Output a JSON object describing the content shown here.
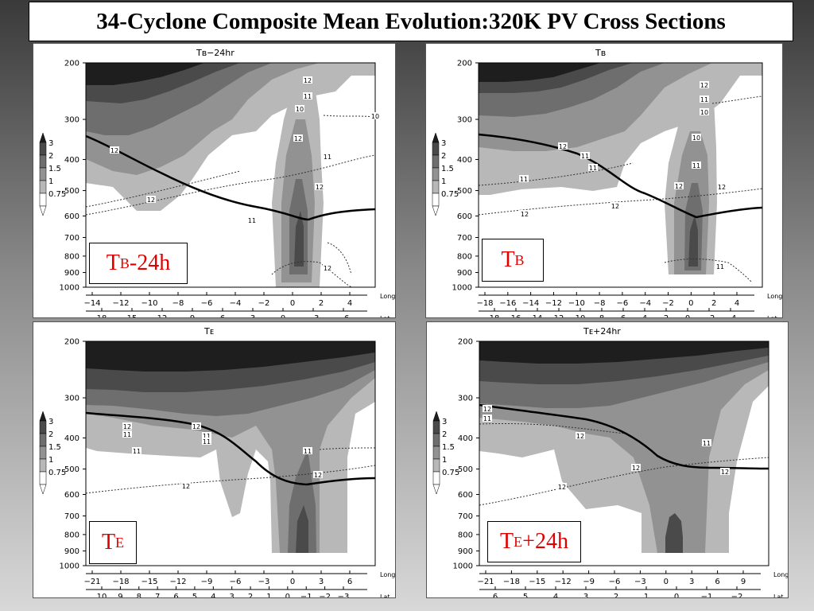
{
  "title": "34-Cyclone Composite Mean Evolution:320K PV Cross Sections",
  "legend": {
    "values": [
      "3",
      "2",
      "1.5",
      "1",
      "0.75"
    ],
    "colors": [
      "#1e1e1e",
      "#4a4a4a",
      "#6e6e6e",
      "#929292",
      "#b8b8b8",
      "#ffffff"
    ]
  },
  "y_axis": {
    "ticks": [
      "200",
      "300",
      "400",
      "500",
      "600",
      "700",
      "800",
      "900",
      "1000"
    ],
    "values": [
      200,
      300,
      400,
      500,
      600,
      700,
      800,
      900,
      1000
    ]
  },
  "axis_names": {
    "long": "Long",
    "lat": "Lat"
  },
  "panels": [
    {
      "id": "tb-24",
      "header": "Tʙ−24hr",
      "label_main": "T",
      "label_sub": "B",
      "label_suffix": "-24h",
      "long_ticks": [
        "−14",
        "−12",
        "−10",
        "−8",
        "−6",
        "−4",
        "−2",
        "0",
        "2",
        "4"
      ],
      "lat_ticks": [
        "18",
        "15",
        "12",
        "9",
        "6",
        "3",
        "0",
        "−3",
        "−6"
      ],
      "contour_labels": [
        "12",
        "11",
        "10",
        "10",
        "12",
        "11",
        "12",
        "12",
        "12",
        "11",
        "12"
      ]
    },
    {
      "id": "tb",
      "header": "Tʙ",
      "label_main": "T",
      "label_sub": "B",
      "label_suffix": "",
      "long_ticks": [
        "−18",
        "−16",
        "−14",
        "−12",
        "−10",
        "−8",
        "−6",
        "−4",
        "−2",
        "0",
        "2",
        "4"
      ],
      "lat_ticks": [
        "18",
        "16",
        "14",
        "12",
        "10",
        "8",
        "6",
        "4",
        "2",
        "0",
        "−2",
        "−4"
      ],
      "contour_labels": [
        "12",
        "11",
        "10",
        "12",
        "11",
        "11",
        "10",
        "11",
        "12",
        "11",
        "12",
        "12",
        "12",
        "11"
      ]
    },
    {
      "id": "te",
      "header": "Tᴇ",
      "label_main": "T",
      "label_sub": "E",
      "label_suffix": "",
      "long_ticks": [
        "−21",
        "−18",
        "−15",
        "−12",
        "−9",
        "−6",
        "−3",
        "0",
        "3",
        "6"
      ],
      "lat_ticks": [
        "10",
        "9",
        "8",
        "7",
        "6",
        "5",
        "4",
        "3",
        "2",
        "1",
        "0",
        "−1",
        "−2",
        "−3"
      ],
      "contour_labels": [
        "12",
        "11",
        "12",
        "11",
        "11",
        "11",
        "11",
        "12",
        "12"
      ]
    },
    {
      "id": "te+24",
      "header": "Tᴇ+24hr",
      "label_main": "T",
      "label_sub": "E",
      "label_suffix": "+24h",
      "long_ticks": [
        "−21",
        "−18",
        "−15",
        "−12",
        "−9",
        "−6",
        "−3",
        "0",
        "3",
        "6",
        "9"
      ],
      "lat_ticks": [
        "6",
        "5",
        "4",
        "3",
        "2",
        "1",
        "0",
        "−1",
        "−2"
      ],
      "contour_labels": [
        "12",
        "11",
        "12",
        "11",
        "12",
        "12",
        "12"
      ]
    }
  ]
}
